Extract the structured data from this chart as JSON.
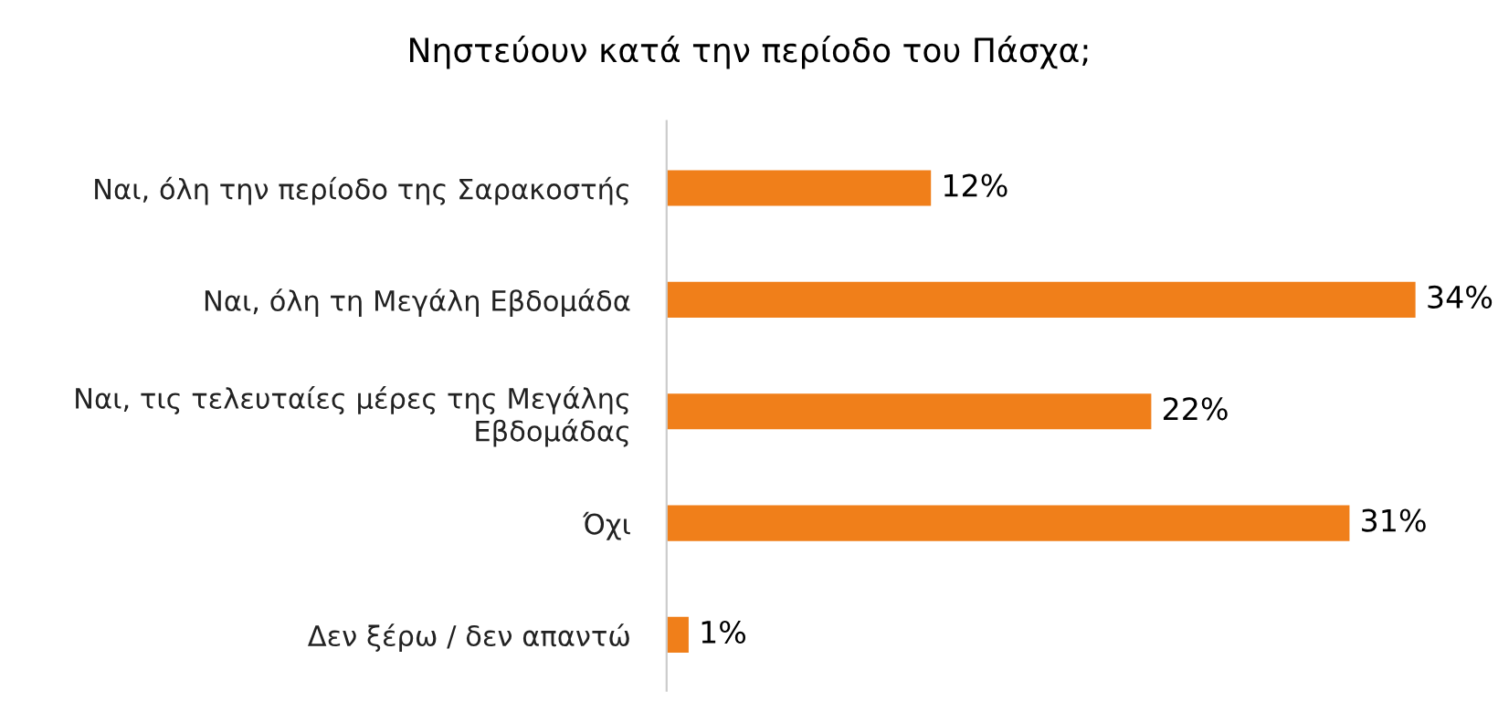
{
  "chart_data": {
    "type": "bar",
    "orientation": "horizontal",
    "title": "Νηστεύουν κατά την περίοδο του Πάσχα;",
    "categories": [
      "Ναι, όλη την περίοδο της Σαρακοστής",
      "Ναι, όλη τη Μεγάλη Εβδομάδα",
      "Ναι, τις τελευταίες μέρες της Μεγάλης Εβδομάδας",
      "Όχι",
      "Δεν ξέρω / δεν απαντώ"
    ],
    "values": [
      12,
      34,
      22,
      31,
      1
    ],
    "value_labels": [
      "12%",
      "34%",
      "22%",
      "31%",
      "1%"
    ],
    "color": "#f07f1a",
    "grid": false,
    "legend": false
  }
}
